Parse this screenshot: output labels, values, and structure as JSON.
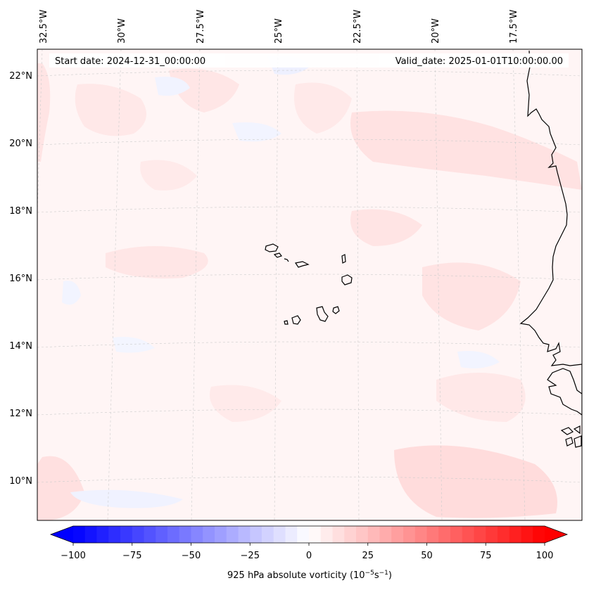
{
  "map": {
    "start_label": "Start date: 2024-12-31_00:00:00",
    "valid_label": "Valid_date: 2025-01-01T10:00:00.00",
    "lon_labels": [
      "32.5°W",
      "30°W",
      "27.5°W",
      "25°W",
      "22.5°W",
      "20°W",
      "17.5°W"
    ],
    "lat_labels": [
      "22°N",
      "20°N",
      "18°N",
      "16°N",
      "14°N",
      "12°N",
      "10°N"
    ],
    "colors": {
      "background_tint": "#fff4f4",
      "coast": "#000000",
      "grid": "#cccccc"
    }
  },
  "colorbar": {
    "ticks": [
      "−100",
      "−75",
      "−50",
      "−25",
      "0",
      "25",
      "50",
      "75",
      "100"
    ],
    "label": "925 hPa absolute vorticity (10",
    "label_sup1": "−5",
    "label_mid": "s",
    "label_sup2": "−1",
    "label_end": ")",
    "min": -100,
    "max": 100,
    "color_min": "#0000ff",
    "color_mid": "#ffffff",
    "color_max": "#ff0000"
  }
}
